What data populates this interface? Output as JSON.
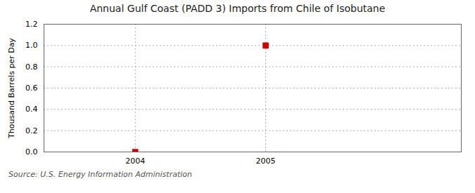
{
  "chart_data": {
    "type": "scatter",
    "title": "Annual Gulf Coast (PADD 3) Imports from Chile of Isobutane",
    "ylabel": "Thousand Barrels per Day",
    "source": "Source: U.S. Energy Information Administration",
    "x": [
      2004,
      2005
    ],
    "values": [
      0.0,
      1.0
    ],
    "color": "#cc0000",
    "marker": "square",
    "xlim": [
      2003.3,
      2006.5
    ],
    "xticks": [
      2004,
      2005
    ],
    "ylim": [
      0.0,
      1.2
    ],
    "yticks": [
      {
        "value": 0,
        "label": "0.0"
      },
      0.2,
      0.4,
      0.6,
      0.8,
      {
        "value": 1,
        "label": "1.0"
      },
      1.2
    ],
    "grid": true
  }
}
